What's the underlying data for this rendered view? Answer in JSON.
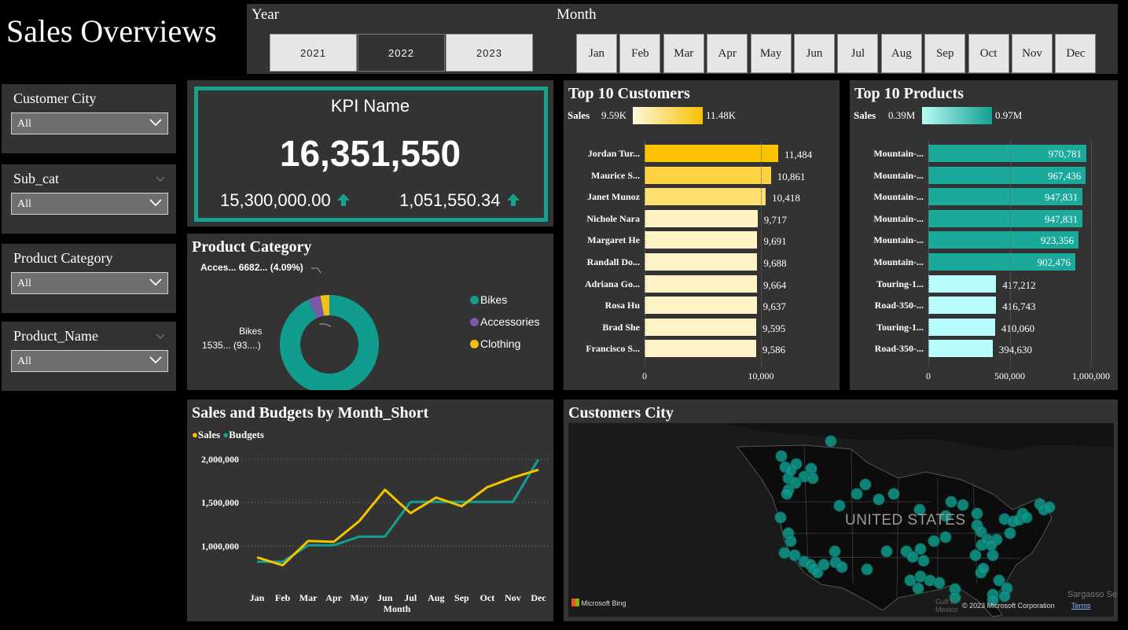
{
  "header": {
    "title": "Sales Overviews"
  },
  "year_slicer": {
    "label": "Year",
    "options": [
      "2021",
      "2022",
      "2023"
    ],
    "selected": "2022"
  },
  "month_slicer": {
    "label": "Month",
    "options": [
      "Jan",
      "Feb",
      "Mar",
      "Apr",
      "May",
      "Jun",
      "Jul",
      "Aug",
      "Sep",
      "Oct",
      "Nov",
      "Dec"
    ]
  },
  "filters": [
    {
      "label": "Customer  City",
      "value": "All"
    },
    {
      "label": "Sub_cat",
      "value": "All"
    },
    {
      "label": "Product Category",
      "value": "All"
    },
    {
      "label": "Product_Name",
      "value": "All"
    }
  ],
  "kpi": {
    "name": "KPI Name",
    "value": "16,351,550",
    "goal": "15,300,000.00",
    "variance": "1,051,550.34",
    "accent": "#18a08e"
  },
  "product_category": {
    "title": "Product Category",
    "labels": {
      "accessories": "Acces... 6682... (4.09%)",
      "bikes_line1": "Bikes",
      "bikes_line2": "1535... (93....)"
    },
    "legend": [
      "Bikes",
      "Accessories",
      "Clothing"
    ],
    "colors": {
      "Bikes": "#119d8e",
      "Accessories": "#7a5aa8",
      "Clothing": "#f2c014"
    }
  },
  "top_customers": {
    "title": "Top 10 Customers",
    "legend": {
      "label": "Sales",
      "min": "9.59K",
      "max": "11.48K"
    },
    "names": [
      "Jordan Tur...",
      "Maurice S...",
      "Janet Munoz",
      "Nichole Nara",
      "Margaret He",
      "Randall Do...",
      "Adriana Go...",
      "Rosa Hu",
      "Brad She",
      "Francisco S..."
    ],
    "value_labels": [
      "11,484",
      "10,861",
      "10,418",
      "9,717",
      "9,691",
      "9,688",
      "9,664",
      "9,637",
      "9,595",
      "9,586"
    ],
    "ticks": [
      "0",
      "10,000"
    ]
  },
  "top_products": {
    "title": "Top 10 Products",
    "legend": {
      "label": "Sales",
      "min": "0.39M",
      "max": "0.97M"
    },
    "names": [
      "Mountain-...",
      "Mountain-...",
      "Mountain-...",
      "Mountain-...",
      "Mountain-...",
      "Mountain-...",
      "Touring-1...",
      "Road-350-...",
      "Touring-1...",
      "Road-350-..."
    ],
    "value_labels": [
      "970,781",
      "967,436",
      "947,831",
      "947,831",
      "923,356",
      "902,476",
      "417,212",
      "416,743",
      "410,060",
      "394,630"
    ],
    "ticks": [
      "0",
      "500,000",
      "1,000,000"
    ]
  },
  "line_chart": {
    "title": "Sales and Budgets by Month_Short",
    "xlabel": "Month",
    "y_ticks": [
      "2,000,000",
      "1,500,000",
      "1,000,000"
    ]
  },
  "map": {
    "title": "Customers City",
    "country_label": "UNITED STATES",
    "bing_label": "Microsoft Bing",
    "copyright": "© 2023 Microsoft Corporation",
    "terms": "Terms",
    "sea_label": "Sargasso Se",
    "gulf_label1": "Gulf of",
    "gulf_label2": "Mexico"
  },
  "chart_data": [
    {
      "type": "pie",
      "title": "Product Category",
      "categories": [
        "Bikes",
        "Accessories",
        "Clothing"
      ],
      "values": [
        93.0,
        4.09,
        2.91
      ]
    },
    {
      "type": "bar",
      "title": "Top 10 Customers",
      "categories": [
        "Jordan Tur...",
        "Maurice S...",
        "Janet Munoz",
        "Nichole Nara",
        "Margaret He",
        "Randall Do...",
        "Adriana Go...",
        "Rosa Hu",
        "Brad She",
        "Francisco S..."
      ],
      "values": [
        11484,
        10861,
        10418,
        9717,
        9691,
        9688,
        9664,
        9637,
        9595,
        9586
      ],
      "xlim": [
        0,
        12700
      ]
    },
    {
      "type": "bar",
      "title": "Top 10 Products",
      "categories": [
        "Mountain-...",
        "Mountain-...",
        "Mountain-...",
        "Mountain-...",
        "Mountain-...",
        "Mountain-...",
        "Touring-1...",
        "Road-350-...",
        "Touring-1...",
        "Road-350-..."
      ],
      "values": [
        970781,
        967436,
        947831,
        947831,
        923356,
        902476,
        417212,
        416743,
        410060,
        394630
      ],
      "xlim": [
        0,
        1000000
      ]
    },
    {
      "type": "line",
      "title": "Sales and Budgets by Month_Short",
      "categories": [
        "Jan",
        "Feb",
        "Mar",
        "Apr",
        "May",
        "Jun",
        "Jul",
        "Aug",
        "Sep",
        "Oct",
        "Nov",
        "Dec"
      ],
      "series": [
        {
          "name": "Sales",
          "color": "#f5c400",
          "values": [
            870000,
            780000,
            1060000,
            1050000,
            1290000,
            1650000,
            1380000,
            1560000,
            1460000,
            1680000,
            1790000,
            1880000
          ]
        },
        {
          "name": "Budgets",
          "color": "#139f92",
          "values": [
            820000,
            820000,
            1010000,
            1010000,
            1110000,
            1110000,
            1510000,
            1510000,
            1510000,
            1510000,
            1510000,
            2000000
          ]
        }
      ],
      "ylim": [
        650000,
        2100000
      ],
      "xlabel": "Month"
    }
  ]
}
